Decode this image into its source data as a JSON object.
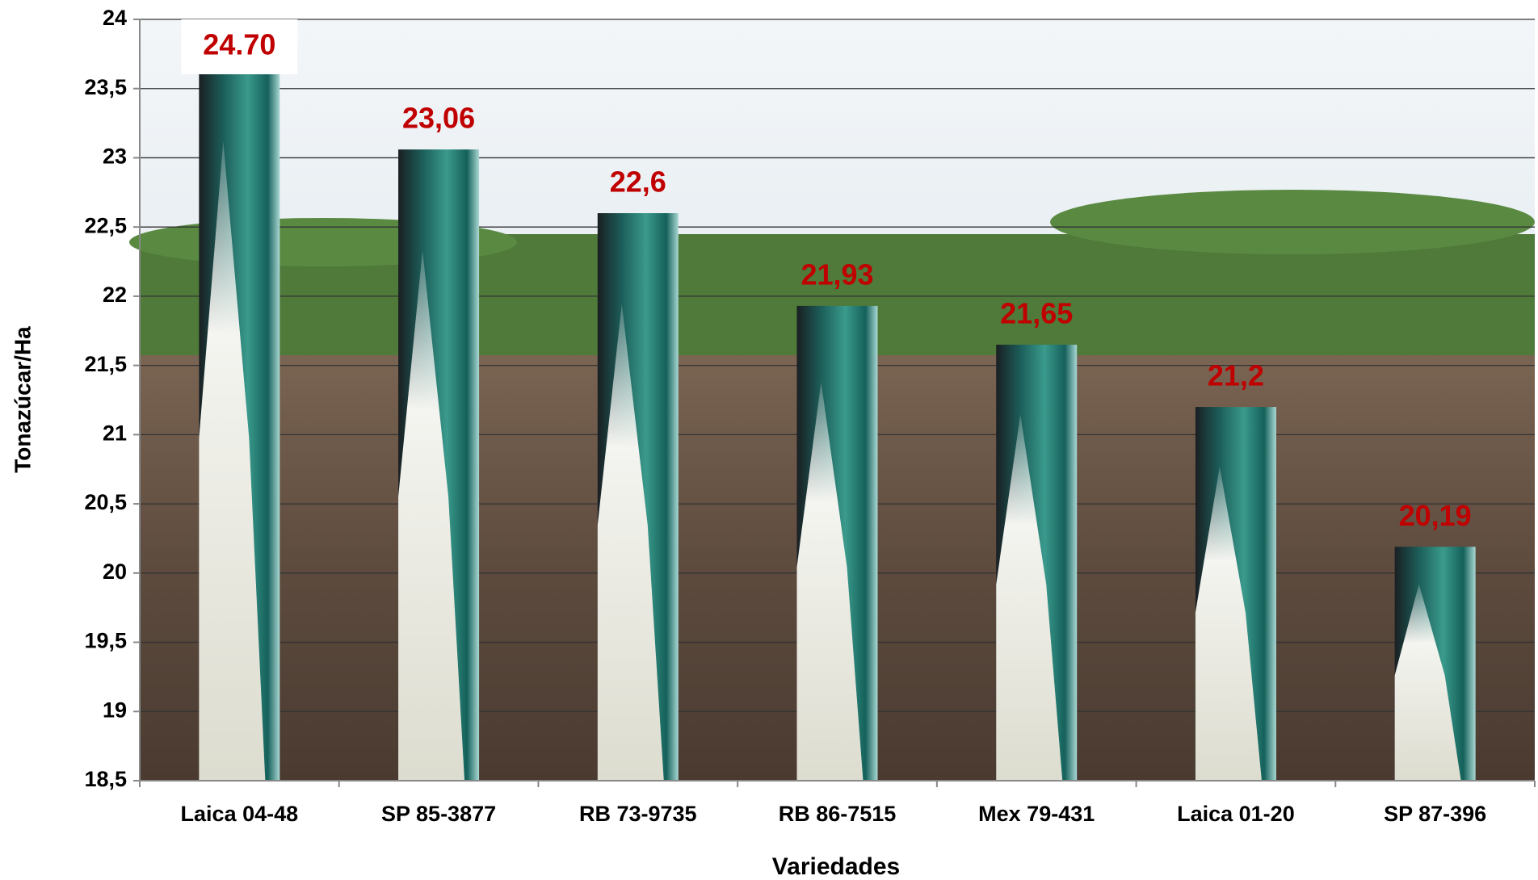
{
  "chart_data": {
    "type": "bar",
    "x_label": "Variedades",
    "y_label": "Tonazúcar/Ha",
    "categories": [
      "Laica 04-48",
      "SP 85-3877",
      "RB 73-9735",
      "RB 86-7515",
      "Mex 79-431",
      "Laica 01-20",
      "SP 87-396"
    ],
    "values": [
      24.7,
      23.06,
      22.6,
      21.93,
      21.65,
      21.2,
      20.19
    ],
    "value_labels": [
      "24.70",
      "23,06",
      "22,6",
      "21,93",
      "21,65",
      "21,2",
      "20,19"
    ],
    "ylim": [
      18.5,
      24
    ],
    "yticks": [
      {
        "value": 18.5,
        "label": "18,5"
      },
      19,
      {
        "value": 19.5,
        "label": "19,5"
      },
      20,
      {
        "value": 20.5,
        "label": "20,5"
      },
      21,
      {
        "value": 21.5,
        "label": "21,5"
      },
      22,
      {
        "value": 22.5,
        "label": "22,5"
      },
      23,
      {
        "value": 23.5,
        "label": "23,5"
      },
      24
    ],
    "grid": true,
    "label_color": "#c00000"
  }
}
